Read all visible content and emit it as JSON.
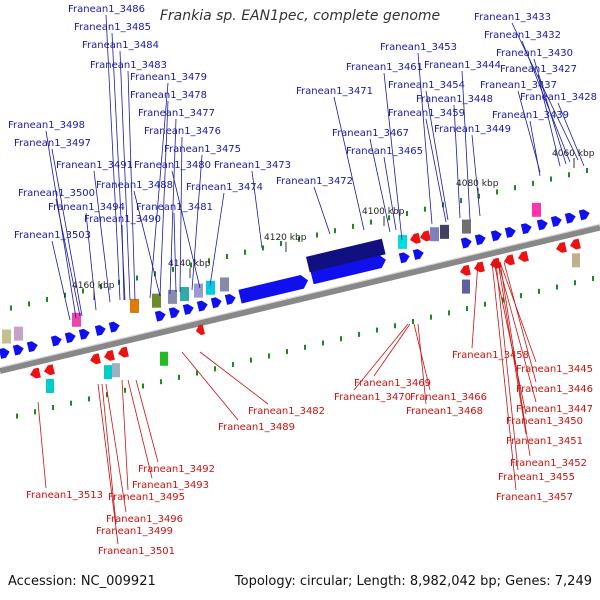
{
  "title": "Frankia sp. EAN1pec, complete genome",
  "footer": {
    "accession": "Accession: NC_009921",
    "summary": "Topology: circular; Length: 8,982,042 bp; Genes: 7,249"
  },
  "colors": {
    "forward_label": "#1a1aa6",
    "reverse_label": "#cc1111",
    "forward_gene": "#1010ee",
    "reverse_gene": "#ee1111",
    "backbone": "#888888",
    "tick_green": "#1a8a1a",
    "dark_gene": "#101080"
  },
  "ticks": [
    "4060 kbp",
    "4080 kbp",
    "4100 kbp",
    "4120 kbp",
    "4140 kbp",
    "4160 kbp"
  ],
  "forward_labels": [
    "Franean1_3486",
    "Franean1_3485",
    "Franean1_3484",
    "Franean1_3483",
    "Franean1_3479",
    "Franean1_3478",
    "Franean1_3477",
    "Franean1_3476",
    "Franean1_3475",
    "Franean1_3480",
    "Franean1_3474",
    "Franean1_3473",
    "Franean1_3488",
    "Franean1_3481",
    "Franean1_3491",
    "Franean1_3494",
    "Franean1_3490",
    "Franean1_3498",
    "Franean1_3497",
    "Franean1_3500",
    "Franean1_3503",
    "Franean1_3471",
    "Franean1_3472",
    "Franean1_3461",
    "Franean1_3467",
    "Franean1_3465",
    "Franean1_3453",
    "Franean1_3444",
    "Franean1_3454",
    "Franean1_3448",
    "Franean1_3459",
    "Franean1_3449",
    "Franean1_3433",
    "Franean1_3432",
    "Franean1_3430",
    "Franean1_3427",
    "Franean1_3437",
    "Franean1_3428",
    "Franean1_3439"
  ],
  "reverse_labels": [
    "Franean1_3458",
    "Franean1_3445",
    "Franean1_3446",
    "Franean1_3447",
    "Franean1_3450",
    "Franean1_3451",
    "Franean1_3452",
    "Franean1_3455",
    "Franean1_3457",
    "Franean1_3469",
    "Franean1_3470",
    "Franean1_3466",
    "Franean1_3468",
    "Franean1_3482",
    "Franean1_3489",
    "Franean1_3492",
    "Franean1_3493",
    "Franean1_3495",
    "Franean1_3513",
    "Franean1_3496",
    "Franean1_3499",
    "Franean1_3501"
  ]
}
